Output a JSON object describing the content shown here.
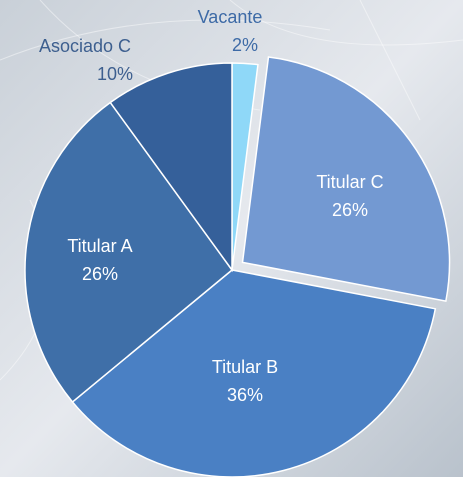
{
  "chart_data": {
    "type": "pie",
    "categories": [
      "Vacante",
      "Titular C",
      "Titular B",
      "Titular A",
      "Asociado C"
    ],
    "values": [
      2,
      26,
      36,
      26,
      10
    ],
    "value_labels": [
      "2%",
      "26%",
      "36%",
      "26%",
      "10%"
    ],
    "colors": [
      "#8fd8f8",
      "#7399d2",
      "#4a80c4",
      "#3f6fa8",
      "#35609a"
    ],
    "exploded": "Titular C"
  }
}
